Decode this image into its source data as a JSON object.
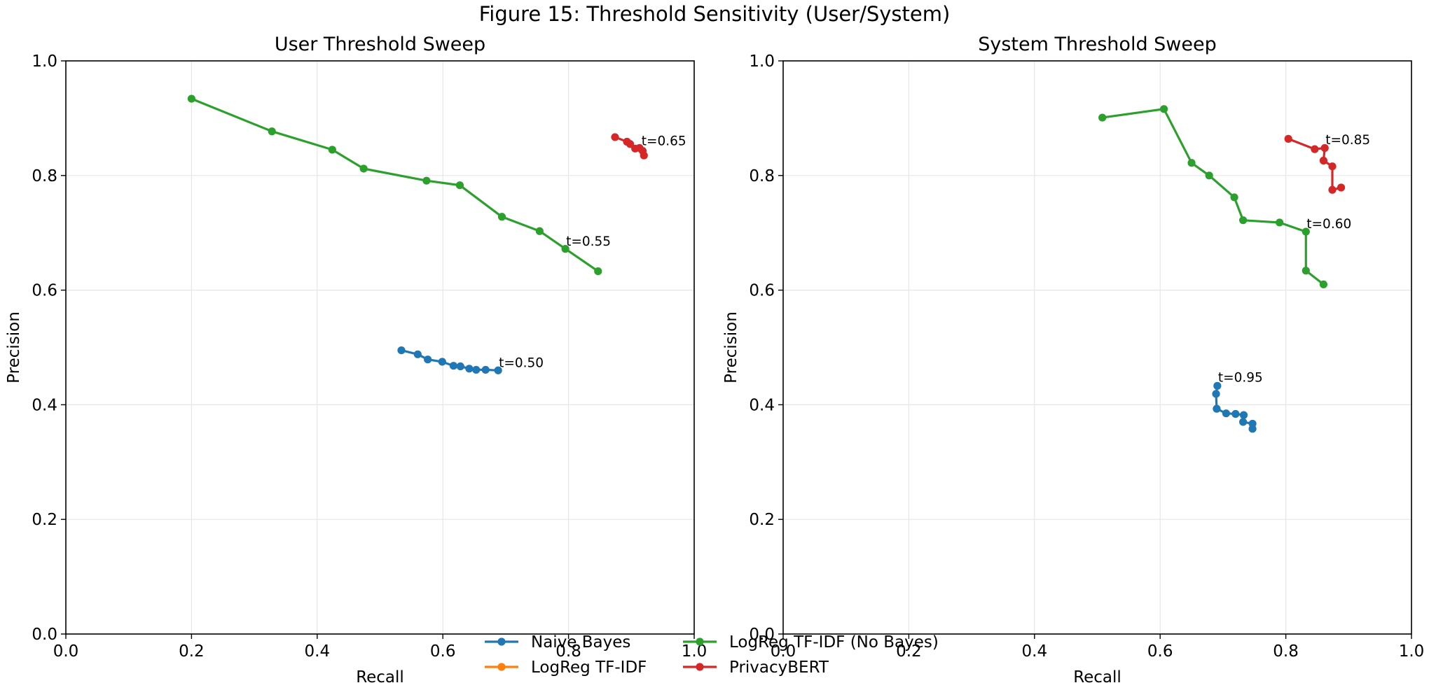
{
  "figure_title": "Figure 15: Threshold Sensitivity (User/System)",
  "colors": {
    "naive_bayes": "#1f77b4",
    "logreg_tfidf": "#ff7f0e",
    "logreg_nobayes": "#2ca02c",
    "privacybert": "#d62728",
    "grid": "#e6e6e6",
    "axis": "#000000"
  },
  "legend": {
    "entries": [
      {
        "label": "Naive Bayes",
        "color_key": "naive_bayes"
      },
      {
        "label": "LogReg TF-IDF",
        "color_key": "logreg_tfidf"
      },
      {
        "label": "LogReg TF-IDF (No Bayes)",
        "color_key": "logreg_nobayes"
      },
      {
        "label": "PrivacyBERT",
        "color_key": "privacybert"
      }
    ]
  },
  "chart_data": [
    {
      "type": "line",
      "title": "User Threshold Sweep",
      "xlabel": "Recall",
      "ylabel": "Precision",
      "xlim": [
        0,
        1
      ],
      "ylim": [
        0,
        1
      ],
      "xticks": [
        "0.0",
        "0.2",
        "0.4",
        "0.6",
        "0.8",
        "1.0"
      ],
      "yticks": [
        "0.0",
        "0.2",
        "0.4",
        "0.6",
        "0.8",
        "1.0"
      ],
      "grid": true,
      "series": [
        {
          "name": "Naive Bayes",
          "color_key": "naive_bayes",
          "x": [
            0.534,
            0.56,
            0.576,
            0.599,
            0.617,
            0.628,
            0.642,
            0.653,
            0.668,
            0.688
          ],
          "y": [
            0.495,
            0.488,
            0.479,
            0.475,
            0.468,
            0.467,
            0.463,
            0.461,
            0.461,
            0.46
          ]
        },
        {
          "name": "LogReg TF-IDF (No Bayes)",
          "color_key": "logreg_nobayes",
          "x": [
            0.2,
            0.328,
            0.424,
            0.474,
            0.574,
            0.627,
            0.694,
            0.754,
            0.795,
            0.847
          ],
          "y": [
            0.934,
            0.877,
            0.845,
            0.812,
            0.791,
            0.783,
            0.728,
            0.703,
            0.672,
            0.633
          ]
        },
        {
          "name": "PrivacyBERT",
          "color_key": "privacybert",
          "x": [
            0.874,
            0.893,
            0.898,
            0.906,
            0.913,
            0.918,
            0.92
          ],
          "y": [
            0.867,
            0.859,
            0.855,
            0.847,
            0.848,
            0.843,
            0.835
          ]
        }
      ],
      "annotations": [
        {
          "text": "t=0.50",
          "x": 0.688,
          "y": 0.461
        },
        {
          "text": "t=0.55",
          "x": 0.795,
          "y": 0.673
        },
        {
          "text": "t=0.65",
          "x": 0.915,
          "y": 0.848
        }
      ]
    },
    {
      "type": "line",
      "title": "System Threshold Sweep",
      "xlabel": "Recall",
      "ylabel": "Precision",
      "xlim": [
        0,
        1
      ],
      "ylim": [
        0,
        1
      ],
      "xticks": [
        "0.0",
        "0.2",
        "0.4",
        "0.6",
        "0.8",
        "1.0"
      ],
      "yticks": [
        "0.0",
        "0.2",
        "0.4",
        "0.6",
        "0.8",
        "1.0"
      ],
      "grid": true,
      "series": [
        {
          "name": "Naive Bayes",
          "color_key": "naive_bayes",
          "x": [
            0.691,
            0.689,
            0.69,
            0.705,
            0.72,
            0.733,
            0.732,
            0.747,
            0.747
          ],
          "y": [
            0.433,
            0.419,
            0.393,
            0.385,
            0.384,
            0.382,
            0.37,
            0.367,
            0.358
          ]
        },
        {
          "name": "LogReg TF-IDF (No Bayes)",
          "color_key": "logreg_nobayes",
          "x": [
            0.508,
            0.606,
            0.65,
            0.678,
            0.718,
            0.732,
            0.79,
            0.832,
            0.832,
            0.86
          ],
          "y": [
            0.901,
            0.916,
            0.822,
            0.8,
            0.762,
            0.722,
            0.718,
            0.702,
            0.634,
            0.61
          ]
        },
        {
          "name": "PrivacyBERT",
          "color_key": "privacybert",
          "x": [
            0.804,
            0.846,
            0.862,
            0.86,
            0.874,
            0.874,
            0.888
          ],
          "y": [
            0.864,
            0.846,
            0.848,
            0.826,
            0.816,
            0.775,
            0.779
          ]
        }
      ],
      "annotations": [
        {
          "text": "t=0.95",
          "x": 0.691,
          "y": 0.435
        },
        {
          "text": "t=0.60",
          "x": 0.832,
          "y": 0.703
        },
        {
          "text": "t=0.85",
          "x": 0.862,
          "y": 0.85
        }
      ]
    }
  ]
}
